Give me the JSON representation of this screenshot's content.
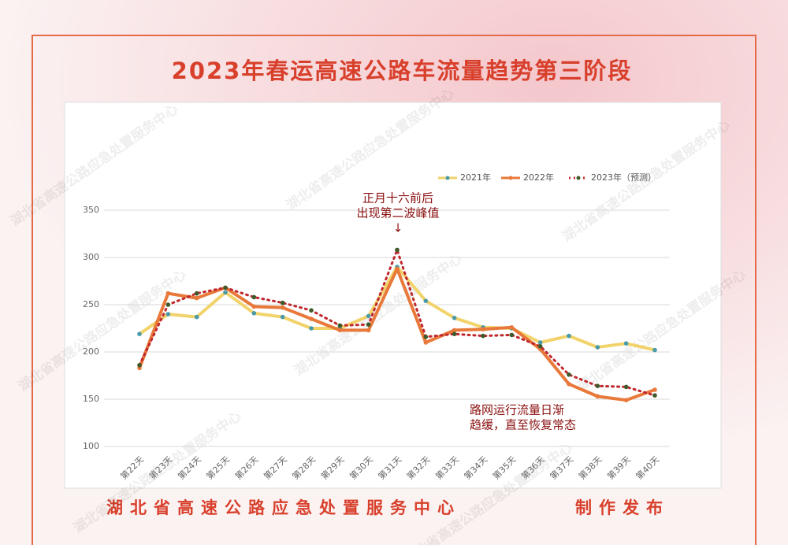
{
  "chart_data": {
    "type": "line",
    "title": "2023年春运高速公路车流量趋势第三阶段",
    "categories": [
      "第22天",
      "第23天",
      "第24天",
      "第25天",
      "第26天",
      "第27天",
      "第28天",
      "第29天",
      "第30天",
      "第31天",
      "第32天",
      "第33天",
      "第34天",
      "第35天",
      "第36天",
      "第37天",
      "第38天",
      "第39天",
      "第40天"
    ],
    "series": [
      {
        "name": "2021年",
        "color": "#f2d36b",
        "marker_color": "#4a9aa8",
        "dashed": false,
        "values": [
          219,
          240,
          237,
          263,
          241,
          237,
          225,
          225,
          238,
          290,
          254,
          236,
          226,
          225,
          210,
          217,
          205,
          209,
          202
        ]
      },
      {
        "name": "2022年",
        "color": "#e8793a",
        "marker_color": "#e8793a",
        "dashed": false,
        "values": [
          183,
          262,
          257,
          268,
          248,
          247,
          235,
          223,
          223,
          288,
          210,
          223,
          224,
          226,
          203,
          166,
          153,
          149,
          160
        ]
      },
      {
        "name": "2023年（预测）",
        "color": "#c0282d",
        "marker_color": "#3e5a2a",
        "dashed": true,
        "values": [
          186,
          250,
          262,
          268,
          258,
          252,
          244,
          228,
          229,
          308,
          216,
          219,
          217,
          218,
          206,
          176,
          164,
          163,
          154
        ]
      }
    ],
    "ylim": [
      100,
      350
    ],
    "yticks": [
      100,
      150,
      200,
      250,
      300,
      350
    ],
    "grid": true,
    "legend": "top-right",
    "annotations": [
      {
        "lines": [
          "正月十六前后",
          "出现第二波峰值",
          "↓"
        ]
      },
      {
        "lines": [
          "路网运行流量日渐",
          "趋缓，直至恢复常态"
        ]
      }
    ],
    "footer_left": "湖北省高速公路应急处置服务中心",
    "footer_right": "制作发布",
    "watermark": "湖北省高速公路应急处置服务中心"
  }
}
